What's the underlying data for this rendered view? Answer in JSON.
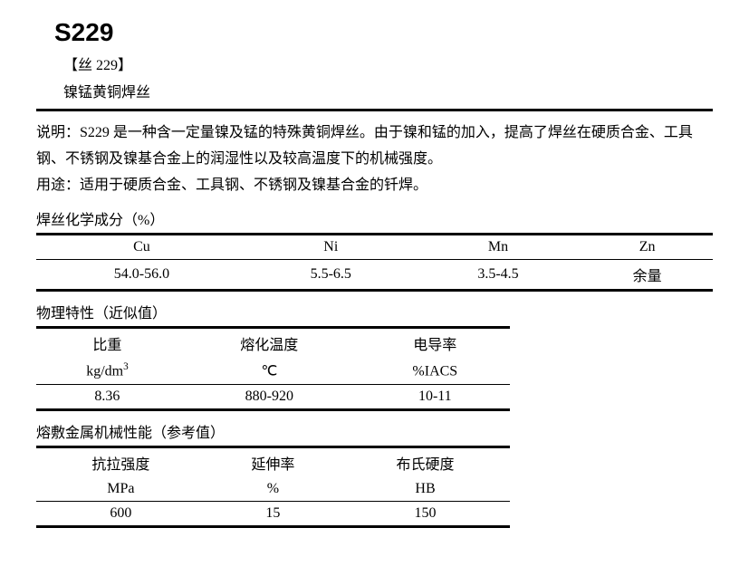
{
  "header": {
    "code": "S229",
    "bracket": "【丝 229】",
    "subtitle": "镍锰黄铜焊丝"
  },
  "description": {
    "label": "说明：",
    "text": "S229 是一种含一定量镍及锰的特殊黄铜焊丝。由于镍和锰的加入，提高了焊丝在硬质合金、工具钢、不锈钢及镍基合金上的润湿性以及较高温度下的机械强度。"
  },
  "usage": {
    "label": "用途：",
    "text": "适用于硬质合金、工具钢、不锈钢及镍基合金的钎焊。"
  },
  "chem": {
    "heading": "焊丝化学成分（%）",
    "columns": [
      "Cu",
      "Ni",
      "Mn",
      "Zn"
    ],
    "row": [
      "54.0-56.0",
      "5.5-6.5",
      "3.5-4.5",
      "余量"
    ]
  },
  "phys": {
    "heading": "物理特性（近似值）",
    "col_labels": [
      "比重",
      "熔化温度",
      "电导率"
    ],
    "col_units_pre": [
      "kg/dm",
      "℃",
      "%IACS"
    ],
    "col_units_sup": [
      "3",
      "",
      ""
    ],
    "row": [
      "8.36",
      "880-920",
      "10-11"
    ]
  },
  "mech": {
    "heading": "熔敷金属机械性能（参考值）",
    "col_labels": [
      "抗拉强度",
      "延伸率",
      "布氏硬度"
    ],
    "col_units": [
      "MPa",
      "%",
      "HB"
    ],
    "row": [
      "600",
      "15",
      "150"
    ]
  }
}
